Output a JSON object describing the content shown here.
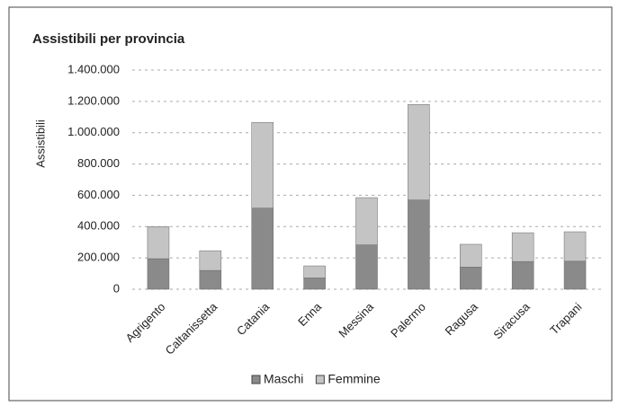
{
  "chart_data": {
    "type": "stacked_bar",
    "title": "Assistibili per provincia",
    "y_label": "Assistibili",
    "categories": [
      "Agrigento",
      "Caltanissetta",
      "Catania",
      "Enna",
      "Messina",
      "Palermo",
      "Ragusa",
      "Siracusa",
      "Trapani"
    ],
    "series": [
      {
        "name": "Maschi",
        "color": "#8a8a8a",
        "values": [
          195000,
          120000,
          518000,
          72000,
          283000,
          570000,
          142000,
          177000,
          179000
        ]
      },
      {
        "name": "Femmine",
        "color": "#c4c4c4",
        "values": [
          205000,
          126000,
          548000,
          77000,
          302000,
          610000,
          145000,
          184000,
          188000
        ]
      }
    ],
    "ylim": [
      0,
      1400000
    ],
    "yticks": [
      0,
      {
        "value": 200000,
        "label": "200.000"
      },
      {
        "value": 400000,
        "label": "400.000"
      },
      {
        "value": 600000,
        "label": "600.000"
      },
      {
        "value": 800000,
        "label": "800.000"
      },
      {
        "value": 1000000,
        "label": "1.000.000"
      },
      {
        "value": 1200000,
        "label": "1.200.000"
      },
      {
        "value": 1400000,
        "label": "1.400.000"
      }
    ],
    "grid": true,
    "legend": "bottom"
  }
}
